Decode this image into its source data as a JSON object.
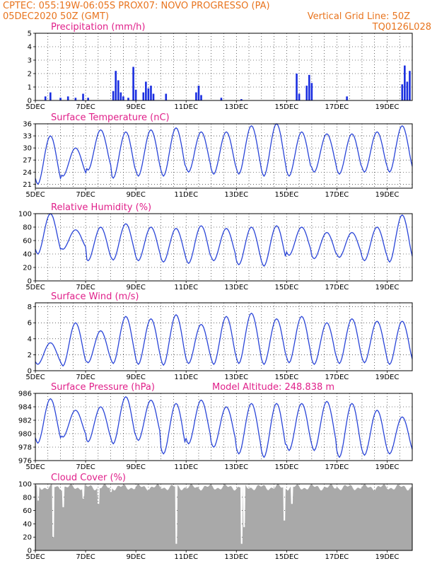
{
  "header": {
    "line1_left": "CPTEC:   055:19W-06:05S   PROX07: NOVO PROGRESSO (PA)",
    "line2_left": "05DEC2020 50Z (GMT)",
    "line2_right": "Vertical Grid Line: 50Z",
    "line3_right": "TQ0126L028"
  },
  "x_ticks": [
    "5DEC",
    "7DEC",
    "9DEC",
    "11DEC",
    "13DEC",
    "15DEC",
    "17DEC",
    "19DEC"
  ],
  "model_altitude": "Model Altitude: 248.838 m",
  "colors": {
    "line": "#2a45d8",
    "bar": "#1a2ee0",
    "cloud": "#a9a9a9",
    "title": "#e0208a",
    "header": "#e8741e"
  },
  "chart_data": [
    {
      "type": "bar",
      "title": "Precipitation (mm/h)",
      "ylim": [
        0,
        5
      ],
      "yticks": [
        0,
        1,
        2,
        3,
        4,
        5
      ],
      "x_range_days": [
        5,
        20
      ],
      "spikes": [
        [
          5.4,
          0.3
        ],
        [
          5.6,
          0.6
        ],
        [
          6.0,
          0.2
        ],
        [
          6.3,
          0.3
        ],
        [
          6.6,
          0.2
        ],
        [
          6.9,
          0.5
        ],
        [
          7.1,
          0.2
        ],
        [
          8.1,
          0.7
        ],
        [
          8.2,
          2.2
        ],
        [
          8.3,
          1.5
        ],
        [
          8.4,
          0.6
        ],
        [
          8.5,
          0.3
        ],
        [
          8.7,
          0.2
        ],
        [
          8.9,
          2.5
        ],
        [
          9.0,
          0.8
        ],
        [
          9.3,
          0.6
        ],
        [
          9.4,
          1.4
        ],
        [
          9.5,
          0.9
        ],
        [
          9.6,
          1.1
        ],
        [
          9.7,
          0.5
        ],
        [
          10.2,
          0.5
        ],
        [
          11.4,
          0.6
        ],
        [
          11.5,
          1.1
        ],
        [
          11.6,
          0.4
        ],
        [
          12.4,
          0.2
        ],
        [
          13.2,
          0.1
        ],
        [
          15.4,
          2.0
        ],
        [
          15.5,
          0.5
        ],
        [
          15.8,
          1.1
        ],
        [
          15.9,
          1.9
        ],
        [
          16.0,
          1.3
        ],
        [
          17.4,
          0.3
        ],
        [
          19.6,
          1.2
        ],
        [
          19.7,
          2.6
        ],
        [
          19.8,
          1.4
        ],
        [
          19.9,
          2.2
        ]
      ]
    },
    {
      "type": "line",
      "title": "Surface Temperature (nC)",
      "ylim": [
        20,
        36
      ],
      "yticks": [
        21,
        24,
        27,
        30,
        33,
        36
      ],
      "pattern": {
        "mins": [
          21,
          23,
          24.5,
          22.5,
          23,
          23,
          24,
          23.5,
          23.5,
          23,
          23,
          24,
          23.5,
          24,
          24
        ],
        "maxs": [
          33,
          30,
          34.5,
          34,
          34.5,
          35,
          34,
          34,
          35.5,
          36,
          34,
          33.5,
          33.5,
          34,
          35.5
        ]
      }
    },
    {
      "type": "line",
      "title": "Relative Humidity (%)",
      "ylim": [
        0,
        100
      ],
      "yticks": [
        0,
        20,
        40,
        60,
        80,
        100
      ],
      "pattern": {
        "mins": [
          40,
          47,
          30,
          31,
          30,
          28,
          26,
          30,
          24,
          22,
          38,
          33,
          35,
          30,
          28
        ],
        "maxs": [
          100,
          76,
          80,
          85,
          80,
          78,
          82,
          78,
          80,
          82,
          80,
          72,
          72,
          80,
          98
        ]
      }
    },
    {
      "type": "line",
      "title": "Surface Wind (m/s)",
      "ylim": [
        0,
        8.5
      ],
      "yticks": [
        0,
        2,
        4,
        6,
        8
      ],
      "pattern": {
        "mins": [
          0.8,
          0.6,
          1.0,
          0.9,
          0.8,
          0.7,
          0.9,
          0.8,
          0.9,
          0.8,
          1.0,
          0.8,
          0.9,
          1.0,
          0.8
        ],
        "maxs": [
          3.5,
          6.0,
          5.0,
          6.8,
          6.5,
          7.0,
          5.8,
          6.8,
          7.2,
          6.5,
          6.8,
          6.0,
          6.5,
          6.2,
          6.2
        ]
      }
    },
    {
      "type": "line",
      "title": "Surface Pressure (hPa)",
      "ylim": [
        976,
        986
      ],
      "yticks": [
        976,
        978,
        980,
        982,
        984,
        986
      ],
      "pattern": {
        "mins": [
          978.6,
          979.5,
          978.8,
          978.5,
          979.0,
          977.0,
          978.5,
          978.0,
          977.0,
          976.5,
          977.5,
          977.5,
          976.5,
          976.8,
          977.0
        ],
        "maxs": [
          985.2,
          983.5,
          984.0,
          985.5,
          985.0,
          984.5,
          985.0,
          984.0,
          984.5,
          984.5,
          984.5,
          984.8,
          984.5,
          983.5,
          982.5
        ]
      }
    },
    {
      "type": "area",
      "title": "Cloud Cover (%)",
      "ylim": [
        0,
        100
      ],
      "yticks": [
        0,
        20,
        40,
        60,
        80,
        100
      ],
      "typical": 95,
      "dips": [
        [
          5.1,
          75
        ],
        [
          5.7,
          20
        ],
        [
          6.1,
          65
        ],
        [
          6.9,
          78
        ],
        [
          7.5,
          70
        ],
        [
          8.0,
          88
        ],
        [
          10.6,
          10
        ],
        [
          13.2,
          10
        ],
        [
          13.3,
          35
        ],
        [
          14.9,
          45
        ],
        [
          15.2,
          70
        ]
      ]
    }
  ]
}
